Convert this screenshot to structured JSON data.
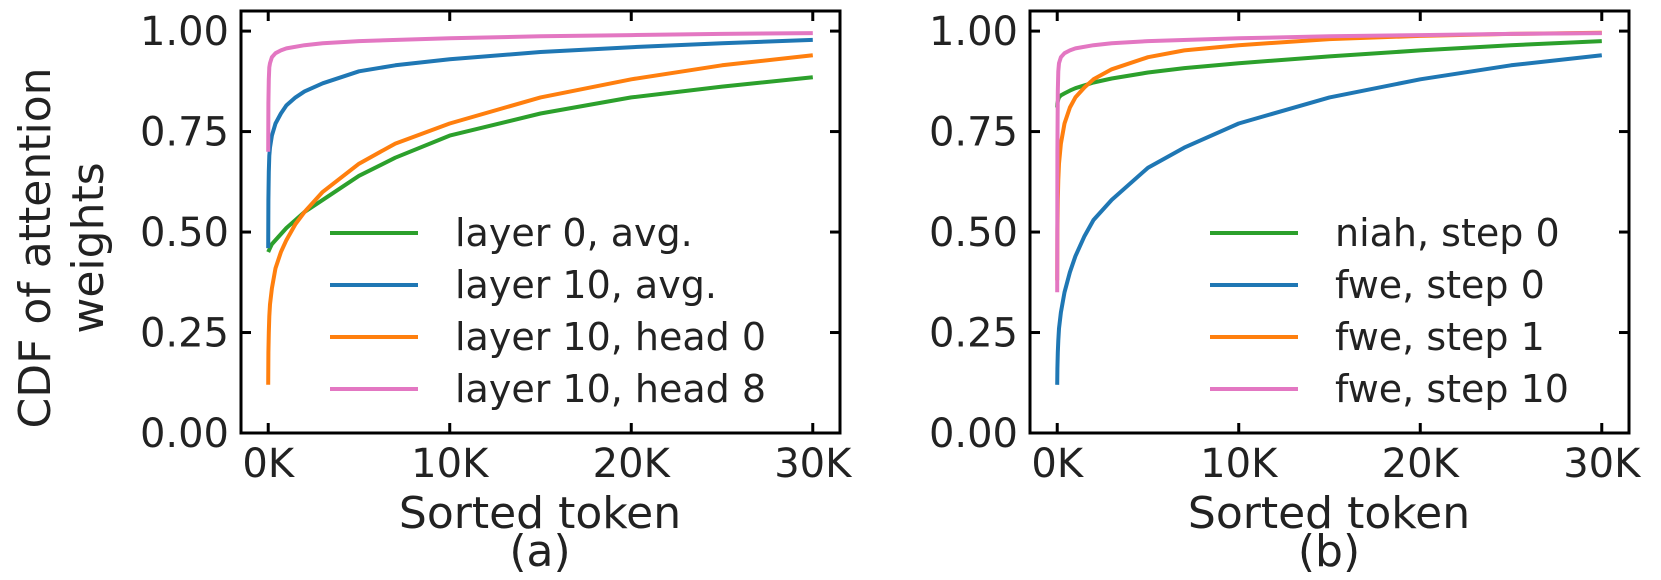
{
  "chart_data": [
    {
      "type": "line",
      "panel_label": "(a)",
      "xlabel": "Sorted token",
      "ylabel": "CDF of attention weights",
      "ylabel_lines": [
        "CDF of attention",
        "weights"
      ],
      "xlim": [
        -1500,
        31500
      ],
      "ylim": [
        0,
        1.05
      ],
      "xticks": [
        0,
        10000,
        20000,
        30000
      ],
      "xtick_labels": [
        "0K",
        "10K",
        "20K",
        "30K"
      ],
      "yticks": [
        0,
        0.25,
        0.5,
        0.75,
        1.0
      ],
      "ytick_labels": [
        "0.00",
        "0.25",
        "0.50",
        "0.75",
        "1.00"
      ],
      "legend_position": "lower-right",
      "series": [
        {
          "name": "layer 0, avg.",
          "color": "#2ca02c",
          "x": [
            0,
            50,
            100,
            200,
            400,
            700,
            1000,
            1500,
            2000,
            3000,
            5000,
            7000,
            10000,
            15000,
            20000,
            25000,
            30000
          ],
          "y": [
            0.45,
            0.455,
            0.46,
            0.47,
            0.48,
            0.495,
            0.51,
            0.53,
            0.55,
            0.58,
            0.64,
            0.685,
            0.74,
            0.795,
            0.835,
            0.862,
            0.885
          ]
        },
        {
          "name": "layer 10, avg.",
          "color": "#1f77b4",
          "x": [
            0,
            10,
            30,
            60,
            100,
            200,
            400,
            700,
            1000,
            1500,
            2000,
            3000,
            5000,
            7000,
            10000,
            15000,
            20000,
            25000,
            30000
          ],
          "y": [
            0.46,
            0.58,
            0.65,
            0.69,
            0.71,
            0.74,
            0.77,
            0.795,
            0.815,
            0.835,
            0.85,
            0.87,
            0.9,
            0.915,
            0.93,
            0.948,
            0.96,
            0.97,
            0.978
          ]
        },
        {
          "name": "layer 10, head 0",
          "color": "#ff7f0e",
          "x": [
            0,
            10,
            30,
            60,
            100,
            200,
            400,
            700,
            1000,
            1500,
            2000,
            3000,
            5000,
            7000,
            10000,
            15000,
            20000,
            25000,
            30000
          ],
          "y": [
            0.12,
            0.2,
            0.25,
            0.29,
            0.32,
            0.36,
            0.41,
            0.45,
            0.48,
            0.52,
            0.55,
            0.6,
            0.67,
            0.72,
            0.77,
            0.835,
            0.88,
            0.915,
            0.94
          ]
        },
        {
          "name": "layer 10, head 8",
          "color": "#e377c2",
          "x": [
            0,
            10,
            30,
            60,
            100,
            200,
            400,
            700,
            1000,
            2000,
            3000,
            5000,
            10000,
            15000,
            20000,
            25000,
            30000
          ],
          "y": [
            0.7,
            0.82,
            0.88,
            0.91,
            0.92,
            0.935,
            0.945,
            0.952,
            0.957,
            0.965,
            0.97,
            0.975,
            0.982,
            0.987,
            0.99,
            0.993,
            0.995
          ]
        }
      ]
    },
    {
      "type": "line",
      "panel_label": "(b)",
      "xlabel": "Sorted token",
      "ylabel": "",
      "xlim": [
        -1500,
        31500
      ],
      "ylim": [
        0,
        1.05
      ],
      "xticks": [
        0,
        10000,
        20000,
        30000
      ],
      "xtick_labels": [
        "0K",
        "10K",
        "20K",
        "30K"
      ],
      "yticks": [
        0,
        0.25,
        0.5,
        0.75,
        1.0
      ],
      "ytick_labels": [
        "0.00",
        "0.25",
        "0.50",
        "0.75",
        "1.00"
      ],
      "legend_position": "lower-right",
      "series": [
        {
          "name": "niah, step 0",
          "color": "#2ca02c",
          "x": [
            0,
            10,
            30,
            60,
            100,
            200,
            400,
            700,
            1000,
            2000,
            3000,
            5000,
            7000,
            10000,
            15000,
            20000,
            25000,
            30000
          ],
          "y": [
            0.81,
            0.82,
            0.825,
            0.83,
            0.835,
            0.84,
            0.845,
            0.852,
            0.858,
            0.872,
            0.882,
            0.897,
            0.908,
            0.92,
            0.937,
            0.952,
            0.965,
            0.975
          ]
        },
        {
          "name": "fwe, step 0",
          "color": "#1f77b4",
          "x": [
            0,
            10,
            30,
            60,
            100,
            200,
            400,
            700,
            1000,
            1500,
            2000,
            3000,
            5000,
            7000,
            10000,
            15000,
            20000,
            25000,
            30000
          ],
          "y": [
            0.12,
            0.16,
            0.2,
            0.23,
            0.26,
            0.3,
            0.35,
            0.4,
            0.44,
            0.49,
            0.53,
            0.58,
            0.66,
            0.71,
            0.77,
            0.835,
            0.88,
            0.915,
            0.94
          ]
        },
        {
          "name": "fwe, step 1",
          "color": "#ff7f0e",
          "x": [
            0,
            10,
            30,
            60,
            100,
            200,
            400,
            700,
            1000,
            1500,
            2000,
            3000,
            5000,
            7000,
            10000,
            15000,
            20000,
            25000,
            30000
          ],
          "y": [
            0.38,
            0.5,
            0.58,
            0.63,
            0.67,
            0.72,
            0.77,
            0.81,
            0.835,
            0.86,
            0.88,
            0.905,
            0.935,
            0.952,
            0.965,
            0.98,
            0.988,
            0.993,
            0.996
          ]
        },
        {
          "name": "fwe, step 10",
          "color": "#e377c2",
          "x": [
            0,
            10,
            30,
            60,
            100,
            200,
            400,
            700,
            1000,
            2000,
            3000,
            5000,
            10000,
            15000,
            20000,
            25000,
            30000
          ],
          "y": [
            0.35,
            0.7,
            0.85,
            0.9,
            0.92,
            0.935,
            0.945,
            0.952,
            0.957,
            0.965,
            0.97,
            0.975,
            0.982,
            0.987,
            0.99,
            0.993,
            0.995
          ]
        }
      ]
    }
  ]
}
